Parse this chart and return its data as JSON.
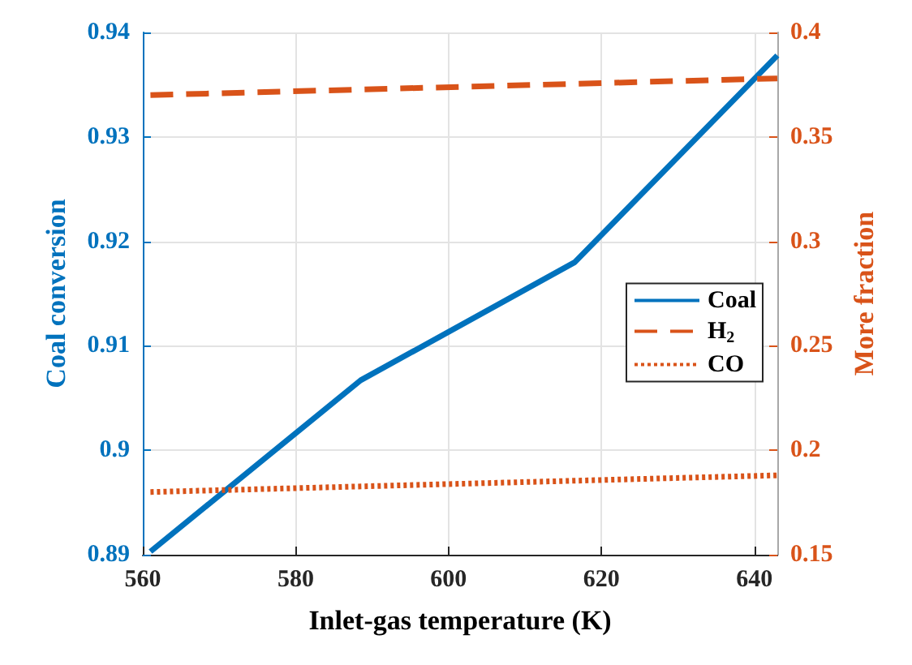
{
  "chart_data": {
    "type": "line",
    "xlabel": "Inlet-gas temperature (K)",
    "ylabel": "Coal conversion",
    "y2label": "More fraction",
    "xlim": [
      560,
      643
    ],
    "xticks": [
      560,
      580,
      600,
      620,
      640
    ],
    "ylim": [
      0.89,
      0.94
    ],
    "yticks": [
      0.89,
      0.9,
      0.91,
      0.92,
      0.93,
      0.94
    ],
    "y2lim": [
      0.15,
      0.4
    ],
    "y2ticks": [
      0.15,
      0.2,
      0.25,
      0.3,
      0.35,
      0.4
    ],
    "grid": true,
    "legend": "right",
    "marker": "none",
    "series": [
      {
        "name": "Coal",
        "color": "#0072bd",
        "line_style": "solid",
        "x": [
          561,
          588.5,
          616.5,
          643
        ],
        "values": [
          0.8903,
          0.9067,
          0.918,
          0.9378
        ]
      },
      {
        "name": "H$_{2}$",
        "color": "#d95319",
        "line_style": "dashed",
        "axis": "y2",
        "x": [
          561,
          643
        ],
        "values": [
          0.37,
          0.378
        ]
      },
      {
        "name": "CO",
        "color": "#d95319",
        "line_style": "dotted",
        "axis": "y2",
        "x": [
          561,
          643
        ],
        "values": [
          0.18,
          0.188
        ]
      }
    ]
  }
}
